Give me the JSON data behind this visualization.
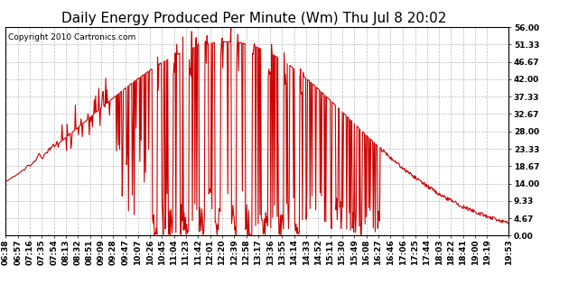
{
  "title": "Daily Energy Produced Per Minute (Wm) Thu Jul 8 20:02",
  "copyright": "Copyright 2010 Cartronics.com",
  "line_color": "#cc0000",
  "background_color": "#ffffff",
  "plot_bg_color": "#ffffff",
  "grid_color": "#aaaaaa",
  "ymin": 0.0,
  "ymax": 56.0,
  "yticks": [
    0.0,
    4.67,
    9.33,
    14.0,
    18.67,
    23.33,
    28.0,
    32.67,
    37.33,
    42.0,
    46.67,
    51.33,
    56.0
  ],
  "ytick_labels": [
    "0.00",
    "4.67",
    "9.33",
    "14.00",
    "18.67",
    "23.33",
    "28.00",
    "32.67",
    "37.33",
    "42.00",
    "46.67",
    "51.33",
    "56.00"
  ],
  "xtick_labels": [
    "06:38",
    "06:57",
    "07:16",
    "07:35",
    "07:54",
    "08:13",
    "08:32",
    "08:51",
    "09:09",
    "09:28",
    "09:47",
    "10:07",
    "10:26",
    "10:45",
    "11:04",
    "11:23",
    "11:42",
    "12:01",
    "12:20",
    "12:39",
    "12:58",
    "13:17",
    "13:36",
    "13:55",
    "14:14",
    "14:33",
    "14:52",
    "15:11",
    "15:30",
    "15:49",
    "16:08",
    "16:27",
    "16:46",
    "17:06",
    "17:25",
    "17:44",
    "18:03",
    "18:22",
    "18:41",
    "19:00",
    "19:19",
    "19:53"
  ],
  "title_fontsize": 11,
  "tick_fontsize": 6.5,
  "copyright_fontsize": 6.5,
  "linewidth": 0.8
}
